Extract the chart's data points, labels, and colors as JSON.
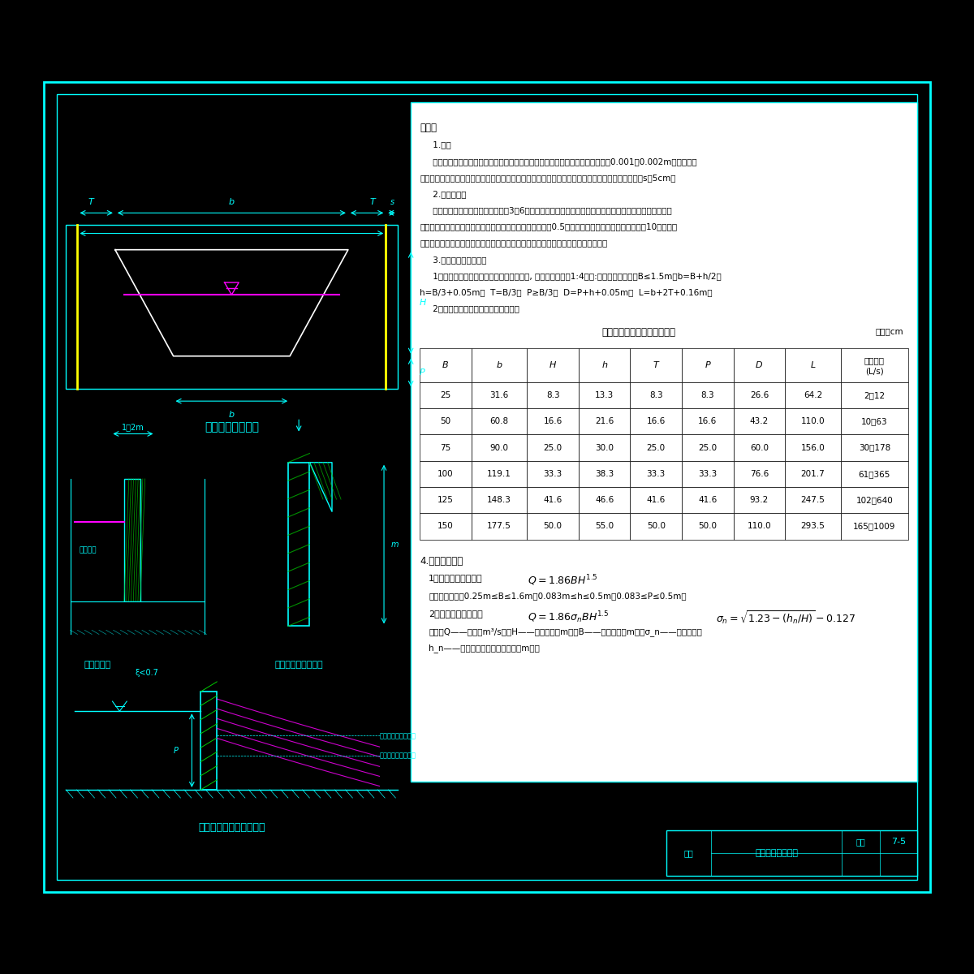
{
  "bg_outer": "#000000",
  "bg_inner": "#1a1a1a",
  "border_outer_color": "#00ffff",
  "border_inner_color": "#00ffff",
  "draw_color": "#00ffff",
  "yellow_color": "#ffff00",
  "magenta_color": "#ff00ff",
  "green_color": "#00aa00",
  "white_color": "#ffffff",
  "text_color": "#000000",
  "title_top": "梯形薄壁堰设计图",
  "title_section": "堰口断面图",
  "title_detail": "堰口纵剖加工大样图",
  "title_flow": "梯形量水堰水流态示意图",
  "table_title": "梯形薄壁量水堰几何尺寸关系",
  "table_unit": "单位：cm",
  "table_headers": [
    "B",
    "b",
    "H",
    "h",
    "T",
    "P",
    "D",
    "L",
    "流量范围\n(L/s)"
  ],
  "table_data": [
    [
      25,
      31.6,
      8.3,
      13.3,
      8.3,
      8.3,
      26.6,
      64.2,
      "2～12"
    ],
    [
      50,
      60.8,
      16.6,
      21.6,
      16.6,
      16.6,
      43.2,
      110.0,
      "10～63"
    ],
    [
      75,
      90.0,
      25.0,
      30.0,
      25.0,
      25.0,
      60.0,
      156.0,
      "30～178"
    ],
    [
      100,
      119.1,
      33.3,
      38.3,
      33.3,
      33.3,
      76.6,
      201.7,
      "61～365"
    ],
    [
      125,
      148.3,
      41.6,
      46.6,
      41.6,
      41.6,
      93.2,
      247.5,
      "102～640"
    ],
    [
      150,
      177.5,
      50.0,
      55.0,
      50.0,
      50.0,
      110.0,
      293.5,
      "165～1009"
    ]
  ],
  "note_title": "说明：",
  "note_lines": [
    "     1.构造",
    "     小型薄壁量水堰堰板可用钢板或木板制成，木制堰板的堰口需加薄铁皮（厚度为0.001～0.002m），大型薄",
    "壁量水堰可由钢筋混凝土制成堰板，安装在混凝土的基座上，堰口应由钢板制成。堰板最小嵌固深度s＝5cm。",
    "     2.适用条件：",
    "     水头测量断面应设置在距堰口上游3～6倍堰顶最大水头处。薄壁量水堰水尺零点高程与堰顶高程应相同，",
    "水尺零点高程用水准仪确定。当堰顶宽与行近渠宽之比大于0.5时，行近渠槽的长度至少应为槽宽的10倍。行近",
    "渠槽应断面整齐、顺直、坚固。当水流速度较大时，堰板下游应采取防冲消能措施。",
    "     3.梯形薄壁堰结构尺寸",
    "     1）梯形薄壁堰结构为上宽下窄的梯形缺口, 堰口侧边比应为1:4（横:竖）。尺寸要求：B≤1.5m；b=B+h/2；",
    "h=B/3+0.05m；  T=B/3；  P≥B/3；  D=P+h+0.05m；  L=b+2T+0.16m。",
    "     2）梯形量水薄壁堰几何尺寸见下表。"
  ],
  "formula_title": "4.流量计算公式",
  "formula1_label": "1）自由流流量公式：",
  "formula1": "Q = 1.86BH^{1.5}",
  "formula1_range": "公式适用范围：0.25m≤B≤1.6m，0.083m≤h≤0.5m，0.083≤P≤0.5m。",
  "formula2_label": "2）淹没流流量公式：",
  "formula2a": "Q = 1.86\\sigma_n BH^{1.5}",
  "formula2b": "\\sigma_n = \\sqrt{1.23 - (h_n/H)} - 0.127",
  "formula_note": "式中：Q——流量（m³/s）；H——堰上水头（m）；B——堰口底宽（m）；σ_n——淹没系数；",
  "formula_note2": "h_n——下游水面高出堰槛的水深（m）。",
  "legend_name": "图名",
  "legend_title": "梯形薄壁堰设计图",
  "legend_number_label": "图号",
  "legend_number": "7-5"
}
